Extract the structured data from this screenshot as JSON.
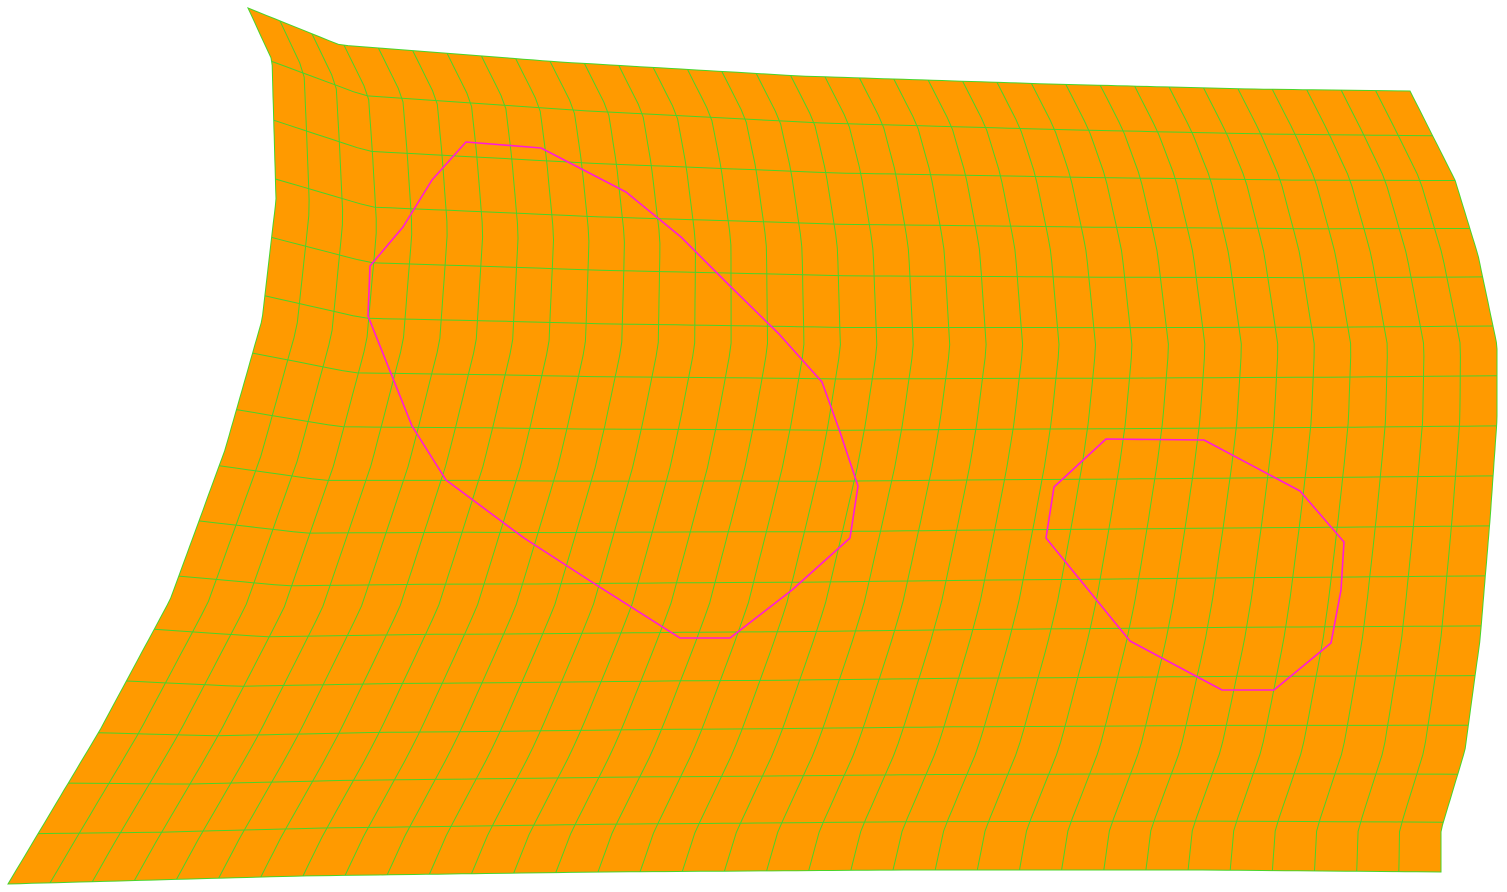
{
  "colors": {
    "background": "#ffffff",
    "surface_fill": "#ff9a00",
    "mesh_lines": "#49d42a",
    "trim_curves": "#ff1ad9"
  },
  "mesh": {
    "columns": 34,
    "rows": 16
  },
  "trim_loops": [
    {
      "name": "large-trim-loop",
      "vertex_count": 18
    },
    {
      "name": "small-trim-loop",
      "vertex_count": 12
    }
  ]
}
